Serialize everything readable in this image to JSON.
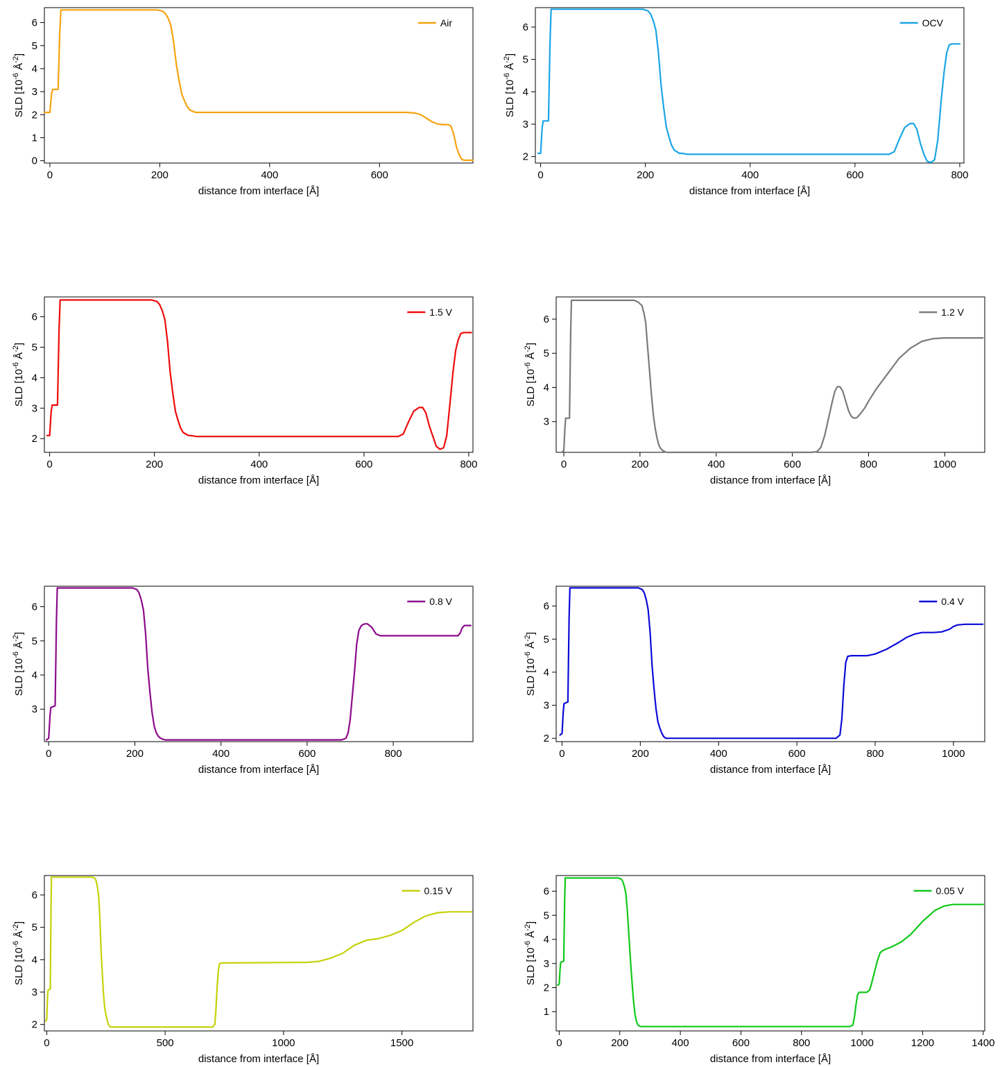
{
  "chart_data": [
    {
      "type": "line",
      "xlabel": "distance from interface [Å]",
      "ylabel": "SLD [10^-6 Å^-2]",
      "xlim": [
        -10,
        770
      ],
      "ylim": [
        -0.1,
        6.65
      ],
      "xticks": [
        0,
        200,
        400,
        600
      ],
      "yticks": [
        0,
        1,
        2,
        3,
        4,
        5,
        6
      ],
      "grid": false,
      "legend_position": "top-right",
      "series": [
        {
          "name": "Air",
          "color": "#f5a30f",
          "x": [
            -10,
            0,
            3,
            5,
            15,
            18,
            20,
            195,
            205,
            210,
            215,
            220,
            225,
            230,
            235,
            240,
            245,
            250,
            255,
            260,
            265,
            270,
            280,
            650,
            665,
            675,
            685,
            695,
            705,
            715,
            725,
            730,
            735,
            740,
            745,
            750,
            755,
            760,
            770
          ],
          "y": [
            2.1,
            2.1,
            2.9,
            3.1,
            3.1,
            5.6,
            6.55,
            6.55,
            6.5,
            6.4,
            6.2,
            5.9,
            5.2,
            4.2,
            3.5,
            2.9,
            2.6,
            2.35,
            2.2,
            2.15,
            2.1,
            2.1,
            2.1,
            2.1,
            2.07,
            2.0,
            1.85,
            1.7,
            1.6,
            1.57,
            1.57,
            1.5,
            1.15,
            0.6,
            0.25,
            0.05,
            0.02,
            0.02,
            0.02
          ]
        }
      ]
    },
    {
      "type": "line",
      "xlabel": "distance from interface [Å]",
      "ylabel": "SLD [10^-6 Å^-2]",
      "xlim": [
        -10,
        808
      ],
      "ylim": [
        1.8,
        6.6
      ],
      "xticks": [
        0,
        200,
        400,
        600,
        800
      ],
      "yticks": [
        2,
        3,
        4,
        5,
        6
      ],
      "grid": false,
      "legend_position": "top-right",
      "series": [
        {
          "name": "OCV",
          "color": "#1aa5e5",
          "x": [
            -5,
            0,
            3,
            5,
            15,
            18,
            20,
            195,
            205,
            210,
            215,
            220,
            225,
            230,
            235,
            240,
            245,
            250,
            255,
            260,
            265,
            270,
            280,
            650,
            665,
            675,
            685,
            695,
            705,
            712,
            718,
            725,
            732,
            738,
            745,
            752,
            758,
            765,
            770,
            775,
            780,
            785,
            790,
            800
          ],
          "y": [
            2.1,
            2.1,
            2.9,
            3.1,
            3.1,
            5.6,
            6.55,
            6.55,
            6.5,
            6.4,
            6.2,
            5.9,
            5.2,
            4.2,
            3.5,
            2.9,
            2.6,
            2.35,
            2.2,
            2.15,
            2.1,
            2.1,
            2.07,
            2.07,
            2.07,
            2.15,
            2.55,
            2.9,
            3.02,
            3.02,
            2.85,
            2.4,
            2.05,
            1.85,
            1.82,
            1.9,
            2.5,
            3.8,
            4.6,
            5.2,
            5.45,
            5.48,
            5.48,
            5.48
          ]
        }
      ]
    },
    {
      "type": "line",
      "xlabel": "distance from interface [Å]",
      "ylabel": "SLD [10^-6 Å^-2]",
      "xlim": [
        -10,
        808
      ],
      "ylim": [
        1.55,
        6.65
      ],
      "xticks": [
        0,
        200,
        400,
        600,
        800
      ],
      "yticks": [
        2,
        3,
        4,
        5,
        6
      ],
      "grid": false,
      "legend_position": "top-right",
      "series": [
        {
          "name": "1.5 V",
          "color": "#ef0a0a",
          "x": [
            -5,
            0,
            3,
            5,
            15,
            18,
            20,
            195,
            205,
            210,
            215,
            220,
            225,
            230,
            235,
            240,
            245,
            250,
            255,
            260,
            265,
            270,
            280,
            650,
            665,
            675,
            685,
            695,
            705,
            712,
            718,
            725,
            732,
            738,
            745,
            752,
            758,
            765,
            770,
            775,
            780,
            785,
            790,
            805
          ],
          "y": [
            2.1,
            2.1,
            2.9,
            3.1,
            3.1,
            5.6,
            6.55,
            6.55,
            6.5,
            6.4,
            6.2,
            5.9,
            5.2,
            4.2,
            3.5,
            2.9,
            2.6,
            2.35,
            2.2,
            2.15,
            2.1,
            2.1,
            2.07,
            2.07,
            2.07,
            2.15,
            2.55,
            2.9,
            3.02,
            3.02,
            2.85,
            2.4,
            2.05,
            1.75,
            1.65,
            1.7,
            2.1,
            3.3,
            4.2,
            4.9,
            5.25,
            5.45,
            5.48,
            5.48
          ]
        }
      ]
    },
    {
      "type": "line",
      "xlabel": "distance from interface [Å]",
      "ylabel": "SLD [10^-6 Å^-2]",
      "xlim": [
        -20,
        1105
      ],
      "ylim": [
        2.1,
        6.65
      ],
      "xticks": [
        0,
        200,
        400,
        600,
        800,
        1000
      ],
      "yticks": [
        3,
        4,
        5,
        6
      ],
      "grid": false,
      "legend_position": "top-right",
      "series": [
        {
          "name": "1.2 V",
          "color": "#7a7a7a",
          "x": [
            -5,
            0,
            3,
            5,
            15,
            18,
            20,
            185,
            195,
            205,
            210,
            215,
            220,
            225,
            230,
            235,
            240,
            245,
            250,
            255,
            260,
            265,
            270,
            280,
            650,
            665,
            675,
            685,
            695,
            705,
            712,
            718,
            725,
            732,
            740,
            748,
            755,
            762,
            770,
            780,
            790,
            800,
            820,
            850,
            880,
            910,
            940,
            970,
            1000,
            1050,
            1100
          ],
          "y": [
            2.1,
            2.15,
            2.8,
            3.1,
            3.1,
            5.6,
            6.55,
            6.55,
            6.5,
            6.4,
            6.2,
            5.9,
            5.2,
            4.5,
            3.8,
            3.2,
            2.8,
            2.5,
            2.3,
            2.2,
            2.15,
            2.12,
            2.1,
            2.1,
            2.1,
            2.12,
            2.25,
            2.6,
            3.1,
            3.6,
            3.9,
            4.02,
            4.02,
            3.9,
            3.6,
            3.3,
            3.15,
            3.1,
            3.12,
            3.25,
            3.4,
            3.6,
            3.95,
            4.4,
            4.85,
            5.15,
            5.35,
            5.43,
            5.45,
            5.45,
            5.45
          ]
        }
      ]
    },
    {
      "type": "line",
      "xlabel": "distance from interface [Å]",
      "ylabel": "SLD [10^-6 Å^-2]",
      "xlim": [
        -10,
        985
      ],
      "ylim": [
        2.05,
        6.6
      ],
      "xticks": [
        0,
        200,
        400,
        600,
        800
      ],
      "yticks": [
        3,
        4,
        5,
        6
      ],
      "grid": false,
      "legend_position": "top-right",
      "series": [
        {
          "name": "0.8 V",
          "color": "#8b0a8b",
          "x": [
            -5,
            0,
            3,
            5,
            15,
            18,
            20,
            195,
            205,
            210,
            215,
            220,
            225,
            230,
            235,
            240,
            245,
            250,
            255,
            260,
            265,
            270,
            280,
            680,
            690,
            695,
            700,
            705,
            710,
            715,
            720,
            725,
            730,
            735,
            740,
            745,
            750,
            755,
            760,
            770,
            790,
            850,
            900,
            950,
            955,
            960,
            965,
            970,
            980
          ],
          "y": [
            2.1,
            2.15,
            2.8,
            3.05,
            3.1,
            5.6,
            6.55,
            6.55,
            6.5,
            6.4,
            6.2,
            5.9,
            5.2,
            4.2,
            3.5,
            2.9,
            2.5,
            2.3,
            2.2,
            2.15,
            2.12,
            2.1,
            2.1,
            2.1,
            2.15,
            2.3,
            2.7,
            3.4,
            4.1,
            4.9,
            5.3,
            5.43,
            5.48,
            5.5,
            5.5,
            5.45,
            5.4,
            5.3,
            5.2,
            5.15,
            5.15,
            5.15,
            5.15,
            5.15,
            5.22,
            5.38,
            5.45,
            5.45,
            5.45
          ]
        }
      ]
    },
    {
      "type": "line",
      "xlabel": "distance from interface [Å]",
      "ylabel": "SLD [10^-6 Å^-2]",
      "xlim": [
        -15,
        1080
      ],
      "ylim": [
        1.9,
        6.6
      ],
      "xticks": [
        0,
        200,
        400,
        600,
        800,
        1000
      ],
      "yticks": [
        2,
        3,
        4,
        5,
        6
      ],
      "grid": false,
      "legend_position": "top-right",
      "series": [
        {
          "name": "0.4 V",
          "color": "#0a0ad8",
          "x": [
            -5,
            0,
            3,
            5,
            15,
            18,
            20,
            195,
            205,
            210,
            215,
            220,
            225,
            230,
            235,
            240,
            245,
            250,
            255,
            260,
            265,
            270,
            280,
            700,
            710,
            715,
            720,
            725,
            730,
            740,
            760,
            780,
            800,
            830,
            860,
            880,
            900,
            920,
            950,
            970,
            990,
            1000,
            1010,
            1030,
            1075
          ],
          "y": [
            2.1,
            2.15,
            2.8,
            3.05,
            3.1,
            5.6,
            6.55,
            6.55,
            6.5,
            6.4,
            6.2,
            5.9,
            5.2,
            4.2,
            3.5,
            2.9,
            2.5,
            2.3,
            2.15,
            2.05,
            2.0,
            2.0,
            2.0,
            2.0,
            2.1,
            2.6,
            3.6,
            4.3,
            4.48,
            4.5,
            4.5,
            4.5,
            4.55,
            4.7,
            4.9,
            5.05,
            5.15,
            5.2,
            5.2,
            5.22,
            5.3,
            5.38,
            5.43,
            5.45,
            5.45
          ]
        }
      ]
    },
    {
      "type": "line",
      "xlabel": "distance from interface [Å]",
      "ylabel": "SLD [10^-6 Å^-2]",
      "xlim": [
        -10,
        1800
      ],
      "ylim": [
        1.8,
        6.6
      ],
      "xticks": [
        0,
        500,
        1000,
        1500
      ],
      "yticks": [
        2,
        3,
        4,
        5,
        6
      ],
      "grid": false,
      "legend_position": "top-right",
      "series": [
        {
          "name": "0.15 V",
          "color": "#c5d10a",
          "x": [
            -5,
            0,
            3,
            5,
            15,
            18,
            20,
            195,
            205,
            210,
            215,
            220,
            225,
            230,
            235,
            240,
            245,
            250,
            255,
            260,
            265,
            270,
            280,
            700,
            710,
            715,
            720,
            725,
            730,
            740,
            760,
            1100,
            1150,
            1200,
            1250,
            1300,
            1350,
            1400,
            1450,
            1500,
            1550,
            1600,
            1650,
            1700,
            1795
          ],
          "y": [
            2.1,
            2.15,
            2.8,
            3.05,
            3.1,
            5.6,
            6.55,
            6.55,
            6.5,
            6.4,
            6.2,
            5.9,
            5.2,
            4.2,
            3.5,
            2.9,
            2.5,
            2.3,
            2.15,
            2.0,
            1.95,
            1.92,
            1.92,
            1.92,
            2.0,
            2.5,
            3.2,
            3.7,
            3.88,
            3.9,
            3.9,
            3.92,
            3.95,
            4.05,
            4.2,
            4.45,
            4.6,
            4.65,
            4.75,
            4.9,
            5.15,
            5.35,
            5.45,
            5.48,
            5.48
          ]
        }
      ]
    },
    {
      "type": "line",
      "xlabel": "distance from interface [Å]",
      "ylabel": "SLD [10^-6 Å^-2]",
      "xlim": [
        -10,
        1405
      ],
      "ylim": [
        0.2,
        6.65
      ],
      "xticks": [
        0,
        200,
        400,
        600,
        800,
        1000,
        1200,
        1400
      ],
      "yticks": [
        1,
        2,
        3,
        4,
        5,
        6
      ],
      "grid": false,
      "legend_position": "top-right",
      "series": [
        {
          "name": "0.05 V",
          "color": "#10c81a",
          "x": [
            -5,
            0,
            3,
            5,
            15,
            18,
            20,
            195,
            205,
            210,
            215,
            220,
            225,
            230,
            235,
            240,
            245,
            250,
            255,
            260,
            265,
            270,
            280,
            960,
            970,
            975,
            980,
            985,
            990,
            1000,
            1015,
            1025,
            1030,
            1040,
            1050,
            1060,
            1070,
            1080,
            1100,
            1130,
            1160,
            1200,
            1240,
            1270,
            1300,
            1400
          ],
          "y": [
            2.1,
            2.15,
            2.8,
            3.05,
            3.1,
            5.6,
            6.55,
            6.55,
            6.5,
            6.4,
            6.2,
            5.9,
            5.2,
            4.2,
            3.2,
            2.3,
            1.5,
            0.9,
            0.6,
            0.45,
            0.4,
            0.38,
            0.38,
            0.38,
            0.45,
            0.8,
            1.3,
            1.7,
            1.8,
            1.8,
            1.8,
            1.9,
            2.1,
            2.6,
            3.1,
            3.45,
            3.55,
            3.6,
            3.7,
            3.9,
            4.2,
            4.75,
            5.2,
            5.38,
            5.45,
            5.45
          ]
        }
      ]
    }
  ]
}
